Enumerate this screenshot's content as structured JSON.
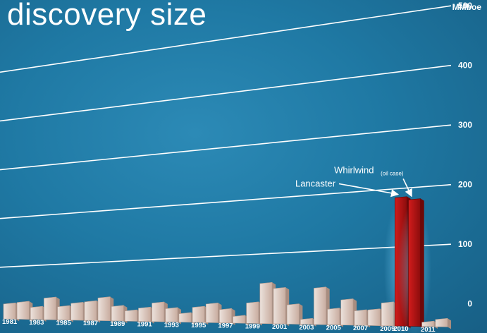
{
  "slide": {
    "title": "discovery size"
  },
  "chart_data": {
    "type": "bar",
    "title": "discovery size",
    "unit": "MMboe",
    "ylim": [
      0,
      500
    ],
    "yticks": [
      "0",
      "100",
      "200",
      "300",
      "400",
      "500"
    ],
    "grid": true,
    "categories": [
      "1981",
      "1982",
      "1983",
      "1984",
      "1985",
      "1986",
      "1987",
      "1988",
      "1989",
      "1990",
      "1991",
      "1992",
      "1993",
      "1994",
      "1995",
      "1996",
      "1997",
      "1998",
      "1999",
      "2000",
      "2001",
      "2002",
      "2003",
      "2004",
      "2005",
      "2006",
      "2007",
      "2008",
      "2009",
      "2010",
      "2010",
      "2011",
      "2011"
    ],
    "category_labels": [
      "1981",
      "",
      "1983",
      "",
      "1985",
      "",
      "1987",
      "",
      "1989",
      "",
      "1991",
      "",
      "1993",
      "",
      "1995",
      "",
      "1997",
      "",
      "1999",
      "",
      "2001",
      "",
      "2003",
      "",
      "2005",
      "",
      "2007",
      "",
      "2009",
      "2010",
      "",
      "2011",
      ""
    ],
    "values": [
      25,
      28,
      20,
      36,
      22,
      28,
      31,
      38,
      24,
      17,
      22,
      31,
      22,
      14,
      25,
      31,
      22,
      11,
      34,
      67,
      59,
      32,
      8,
      61,
      26,
      42,
      24,
      26,
      38,
      215,
      212,
      7,
      12
    ],
    "highlight_color": "#b31313",
    "bar_color": "#d9c3b7",
    "annotations": [
      {
        "text": "Lancaster",
        "subtext": "",
        "target": "2010"
      },
      {
        "text": "Whirlwind",
        "subtext": "(oil case)",
        "target": "2011"
      }
    ]
  }
}
